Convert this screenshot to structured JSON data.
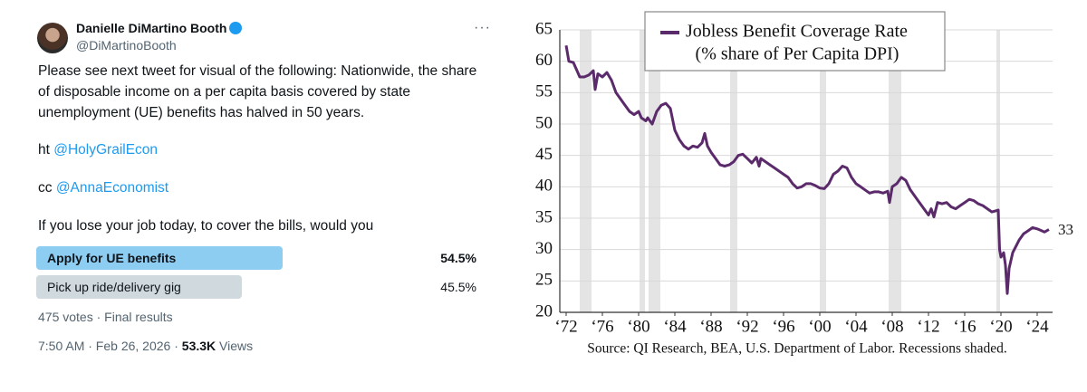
{
  "tweet": {
    "author": "Danielle DiMartino Booth",
    "handle": "@DiMartinoBooth",
    "text_lines": [
      "Please see next tweet for visual of the following: Nationwide, the share",
      "of disposable income on a per capita basis covered by state",
      "unemployment (UE) benefits has halved in 50 years."
    ],
    "ht_prefix": "ht",
    "ht_mention": "@HolyGrailEcon",
    "cc_prefix": "cc",
    "cc_mention": "@AnnaEconomist",
    "question": "If you lose your job today, to cover the bills, would you",
    "poll": {
      "options": [
        {
          "label": "Apply for UE benefits",
          "percent": 54.5,
          "percent_label": "54.5%"
        },
        {
          "label": "Pick up ride/delivery gig",
          "percent": 45.5,
          "percent_label": "45.5%"
        }
      ],
      "summary": "475 votes · Final results"
    },
    "posted": "7:50 AM · Feb 26, 2026",
    "views": "53.3K",
    "views_label": "Views"
  },
  "chart_data": {
    "type": "line",
    "legend_line2": "(% share of Per Capita DPI)",
    "source": "Source: QI Research, BEA, U.S. Department of Labor. Recessions shaded.",
    "last_value_label": 33,
    "xlim": [
      1971.3,
      2025.7
    ],
    "ylim": [
      20,
      65
    ],
    "yticks": [
      20,
      25,
      30,
      35,
      40,
      45,
      50,
      55,
      60,
      65
    ],
    "xticks": [
      {
        "value": 1972,
        "label": "‘72"
      },
      {
        "value": 1976,
        "label": "‘76"
      },
      {
        "value": 1980,
        "label": "‘80"
      },
      {
        "value": 1984,
        "label": "‘84"
      },
      {
        "value": 1988,
        "label": "‘88"
      },
      {
        "value": 1992,
        "label": "‘92"
      },
      {
        "value": 1996,
        "label": "‘96"
      },
      {
        "value": 2000,
        "label": "‘00"
      },
      {
        "value": 2004,
        "label": "‘04"
      },
      {
        "value": 2008,
        "label": "‘08"
      },
      {
        "value": 2012,
        "label": "‘12"
      },
      {
        "value": 2016,
        "label": "‘16"
      },
      {
        "value": 2020,
        "label": "‘20"
      },
      {
        "value": 2024,
        "label": "‘24"
      }
    ],
    "grid": true,
    "recessions": [
      [
        1973.5,
        1974.8
      ],
      [
        1980.1,
        1980.7
      ],
      [
        1981.1,
        1982.4
      ],
      [
        1990.1,
        1990.9
      ],
      [
        2000.0,
        2000.7
      ],
      [
        2007.6,
        2009.0
      ],
      [
        2019.5,
        2019.9
      ]
    ],
    "recession_color": "#e4e4e4",
    "series": [
      {
        "name": "Jobless Benefit Coverage Rate",
        "color": "#5b2a6b",
        "x": [
          1972.0,
          1972.3,
          1972.8,
          1973.2,
          1973.5,
          1974.0,
          1974.5,
          1975.0,
          1975.2,
          1975.5,
          1976.0,
          1976.5,
          1977.0,
          1977.5,
          1978.0,
          1978.5,
          1979.0,
          1979.5,
          1980.0,
          1980.3,
          1980.8,
          1981.0,
          1981.5,
          1982.0,
          1982.5,
          1983.0,
          1983.5,
          1984.0,
          1984.5,
          1985.0,
          1985.5,
          1986.0,
          1986.5,
          1987.0,
          1987.3,
          1987.6,
          1988.0,
          1988.5,
          1989.0,
          1989.5,
          1990.0,
          1990.5,
          1991.0,
          1991.5,
          1992.0,
          1992.5,
          1993.0,
          1993.3,
          1993.5,
          1994.0,
          1994.5,
          1995.0,
          1995.5,
          1996.0,
          1996.5,
          1997.0,
          1997.5,
          1998.0,
          1998.5,
          1999.0,
          1999.5,
          2000.0,
          2000.5,
          2001.0,
          2001.5,
          2002.0,
          2002.5,
          2003.0,
          2003.5,
          2004.0,
          2004.5,
          2005.0,
          2005.5,
          2006.0,
          2006.5,
          2007.0,
          2007.5,
          2007.7,
          2008.0,
          2008.5,
          2009.0,
          2009.5,
          2010.0,
          2010.5,
          2011.0,
          2011.5,
          2012.0,
          2012.3,
          2012.6,
          2013.0,
          2013.5,
          2014.0,
          2014.5,
          2015.0,
          2015.5,
          2016.0,
          2016.5,
          2017.0,
          2017.5,
          2018.0,
          2018.5,
          2019.0,
          2019.5,
          2019.7,
          2019.85,
          2020.0,
          2020.3,
          2020.5,
          2020.7,
          2020.9,
          2021.3,
          2022.0,
          2022.5,
          2023.0,
          2023.5,
          2024.0,
          2024.5,
          2024.8,
          2025.3
        ],
        "values": [
          62.5,
          60,
          59.8,
          58.5,
          57.5,
          57.5,
          57.8,
          58.5,
          55.5,
          58,
          57.5,
          58.2,
          57,
          55,
          54,
          53,
          52,
          51.5,
          52,
          51,
          50.5,
          51,
          50,
          52,
          53,
          53.3,
          52.5,
          49,
          47.5,
          46.5,
          46,
          46.5,
          46.3,
          47,
          48.5,
          46.5,
          45.5,
          44.5,
          43.5,
          43.3,
          43.5,
          44,
          45,
          45.2,
          44.5,
          43.8,
          44.7,
          43.3,
          44.5,
          44,
          43.5,
          43,
          42.5,
          42,
          41.5,
          40.5,
          39.8,
          40,
          40.5,
          40.5,
          40.2,
          39.8,
          39.7,
          40.5,
          42,
          42.5,
          43.3,
          43,
          41.5,
          40.5,
          40,
          39.5,
          39,
          39.2,
          39.2,
          39,
          39.3,
          37.5,
          40,
          40.5,
          41.5,
          41,
          39.5,
          38.5,
          37.5,
          36.5,
          35.5,
          36.5,
          35.2,
          37.5,
          37.3,
          37.5,
          36.8,
          36.5,
          37,
          37.5,
          38,
          37.8,
          37.3,
          37,
          36.5,
          36,
          36.2,
          36.3,
          30,
          28.8,
          29.5,
          27.5,
          23,
          27,
          29.5,
          31.5,
          32.5,
          33,
          33.5,
          33.3,
          33,
          32.8,
          33.2
        ]
      }
    ]
  }
}
